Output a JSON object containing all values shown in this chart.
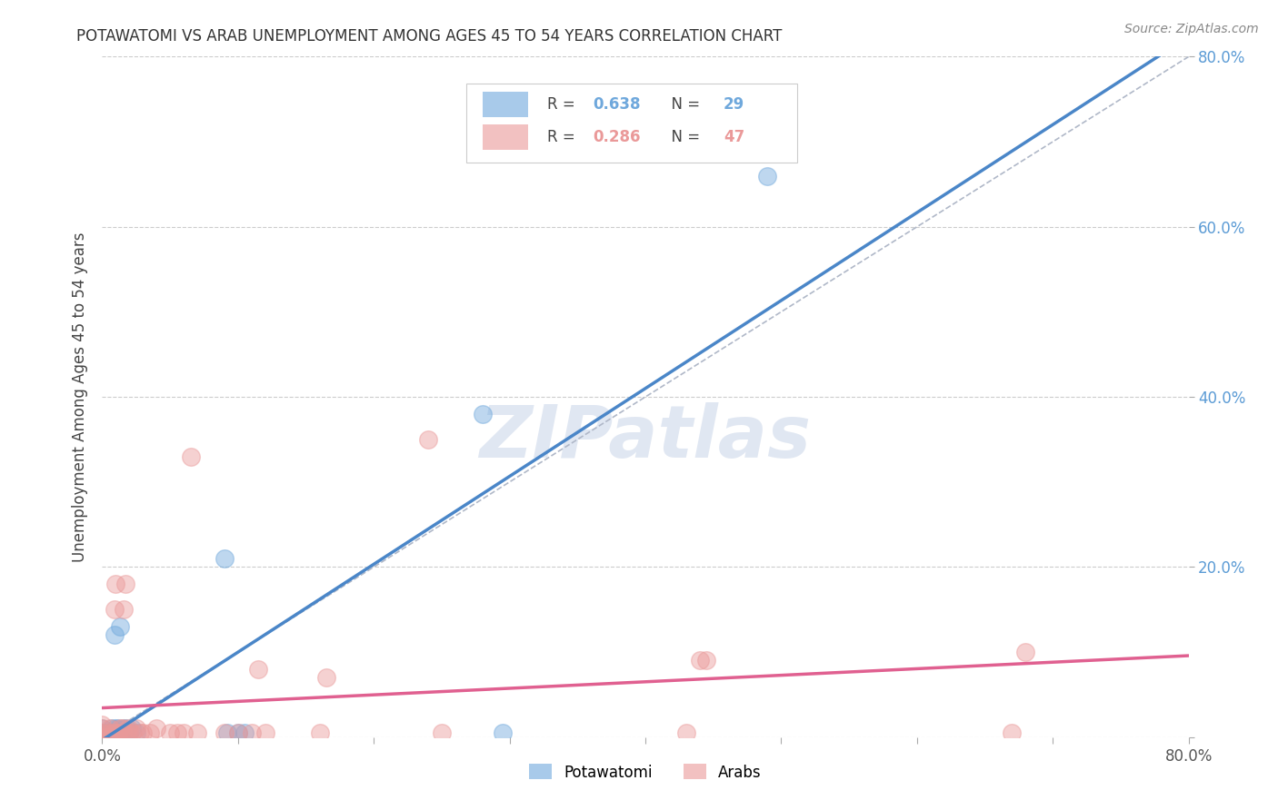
{
  "title": "POTAWATOMI VS ARAB UNEMPLOYMENT AMONG AGES 45 TO 54 YEARS CORRELATION CHART",
  "source": "Source: ZipAtlas.com",
  "ylabel": "Unemployment Among Ages 45 to 54 years",
  "xlim": [
    0,
    0.8
  ],
  "ylim": [
    0,
    0.8
  ],
  "xtick_positions": [
    0.0,
    0.1,
    0.2,
    0.3,
    0.4,
    0.5,
    0.6,
    0.7,
    0.8
  ],
  "xtick_labels": [
    "0.0%",
    "",
    "",
    "",
    "",
    "",
    "",
    "",
    "80.0%"
  ],
  "ytick_positions": [
    0.0,
    0.2,
    0.4,
    0.6,
    0.8
  ],
  "ytick_labels": [
    "",
    "20.0%",
    "40.0%",
    "60.0%",
    "80.0%"
  ],
  "potawatomi_color": "#6fa8dc",
  "arab_color": "#ea9999",
  "potawatomi_line_color": "#4a86c8",
  "arab_line_color": "#e06090",
  "potawatomi_R": 0.638,
  "potawatomi_N": 29,
  "arab_R": 0.286,
  "arab_N": 47,
  "background_color": "#ffffff",
  "watermark": "ZIPatlas",
  "potawatomi_x": [
    0.0,
    0.0,
    0.0,
    0.002,
    0.003,
    0.005,
    0.006,
    0.007,
    0.008,
    0.008,
    0.009,
    0.01,
    0.01,
    0.012,
    0.013,
    0.015,
    0.016,
    0.017,
    0.018,
    0.02,
    0.022,
    0.025,
    0.09,
    0.092,
    0.1,
    0.105,
    0.28,
    0.295,
    0.49
  ],
  "potawatomi_y": [
    0.0,
    0.005,
    0.01,
    0.0,
    0.005,
    0.0,
    0.005,
    0.01,
    0.0,
    0.005,
    0.12,
    0.005,
    0.01,
    0.01,
    0.13,
    0.005,
    0.01,
    0.005,
    0.01,
    0.005,
    0.01,
    0.005,
    0.21,
    0.005,
    0.005,
    0.005,
    0.38,
    0.005,
    0.66
  ],
  "arab_x": [
    0.0,
    0.0,
    0.0,
    0.0,
    0.003,
    0.005,
    0.005,
    0.006,
    0.007,
    0.008,
    0.009,
    0.01,
    0.01,
    0.012,
    0.013,
    0.015,
    0.015,
    0.016,
    0.017,
    0.018,
    0.019,
    0.02,
    0.022,
    0.025,
    0.028,
    0.03,
    0.035,
    0.04,
    0.05,
    0.055,
    0.06,
    0.065,
    0.07,
    0.09,
    0.1,
    0.11,
    0.115,
    0.12,
    0.16,
    0.165,
    0.24,
    0.25,
    0.43,
    0.44,
    0.445,
    0.67,
    0.68
  ],
  "arab_y": [
    0.0,
    0.005,
    0.01,
    0.015,
    0.0,
    0.0,
    0.005,
    0.01,
    0.0,
    0.005,
    0.15,
    0.18,
    0.005,
    0.005,
    0.01,
    0.005,
    0.01,
    0.15,
    0.18,
    0.005,
    0.01,
    0.005,
    0.005,
    0.01,
    0.005,
    0.005,
    0.005,
    0.01,
    0.005,
    0.005,
    0.005,
    0.33,
    0.005,
    0.005,
    0.005,
    0.005,
    0.08,
    0.005,
    0.005,
    0.07,
    0.35,
    0.005,
    0.005,
    0.09,
    0.09,
    0.005,
    0.1
  ]
}
